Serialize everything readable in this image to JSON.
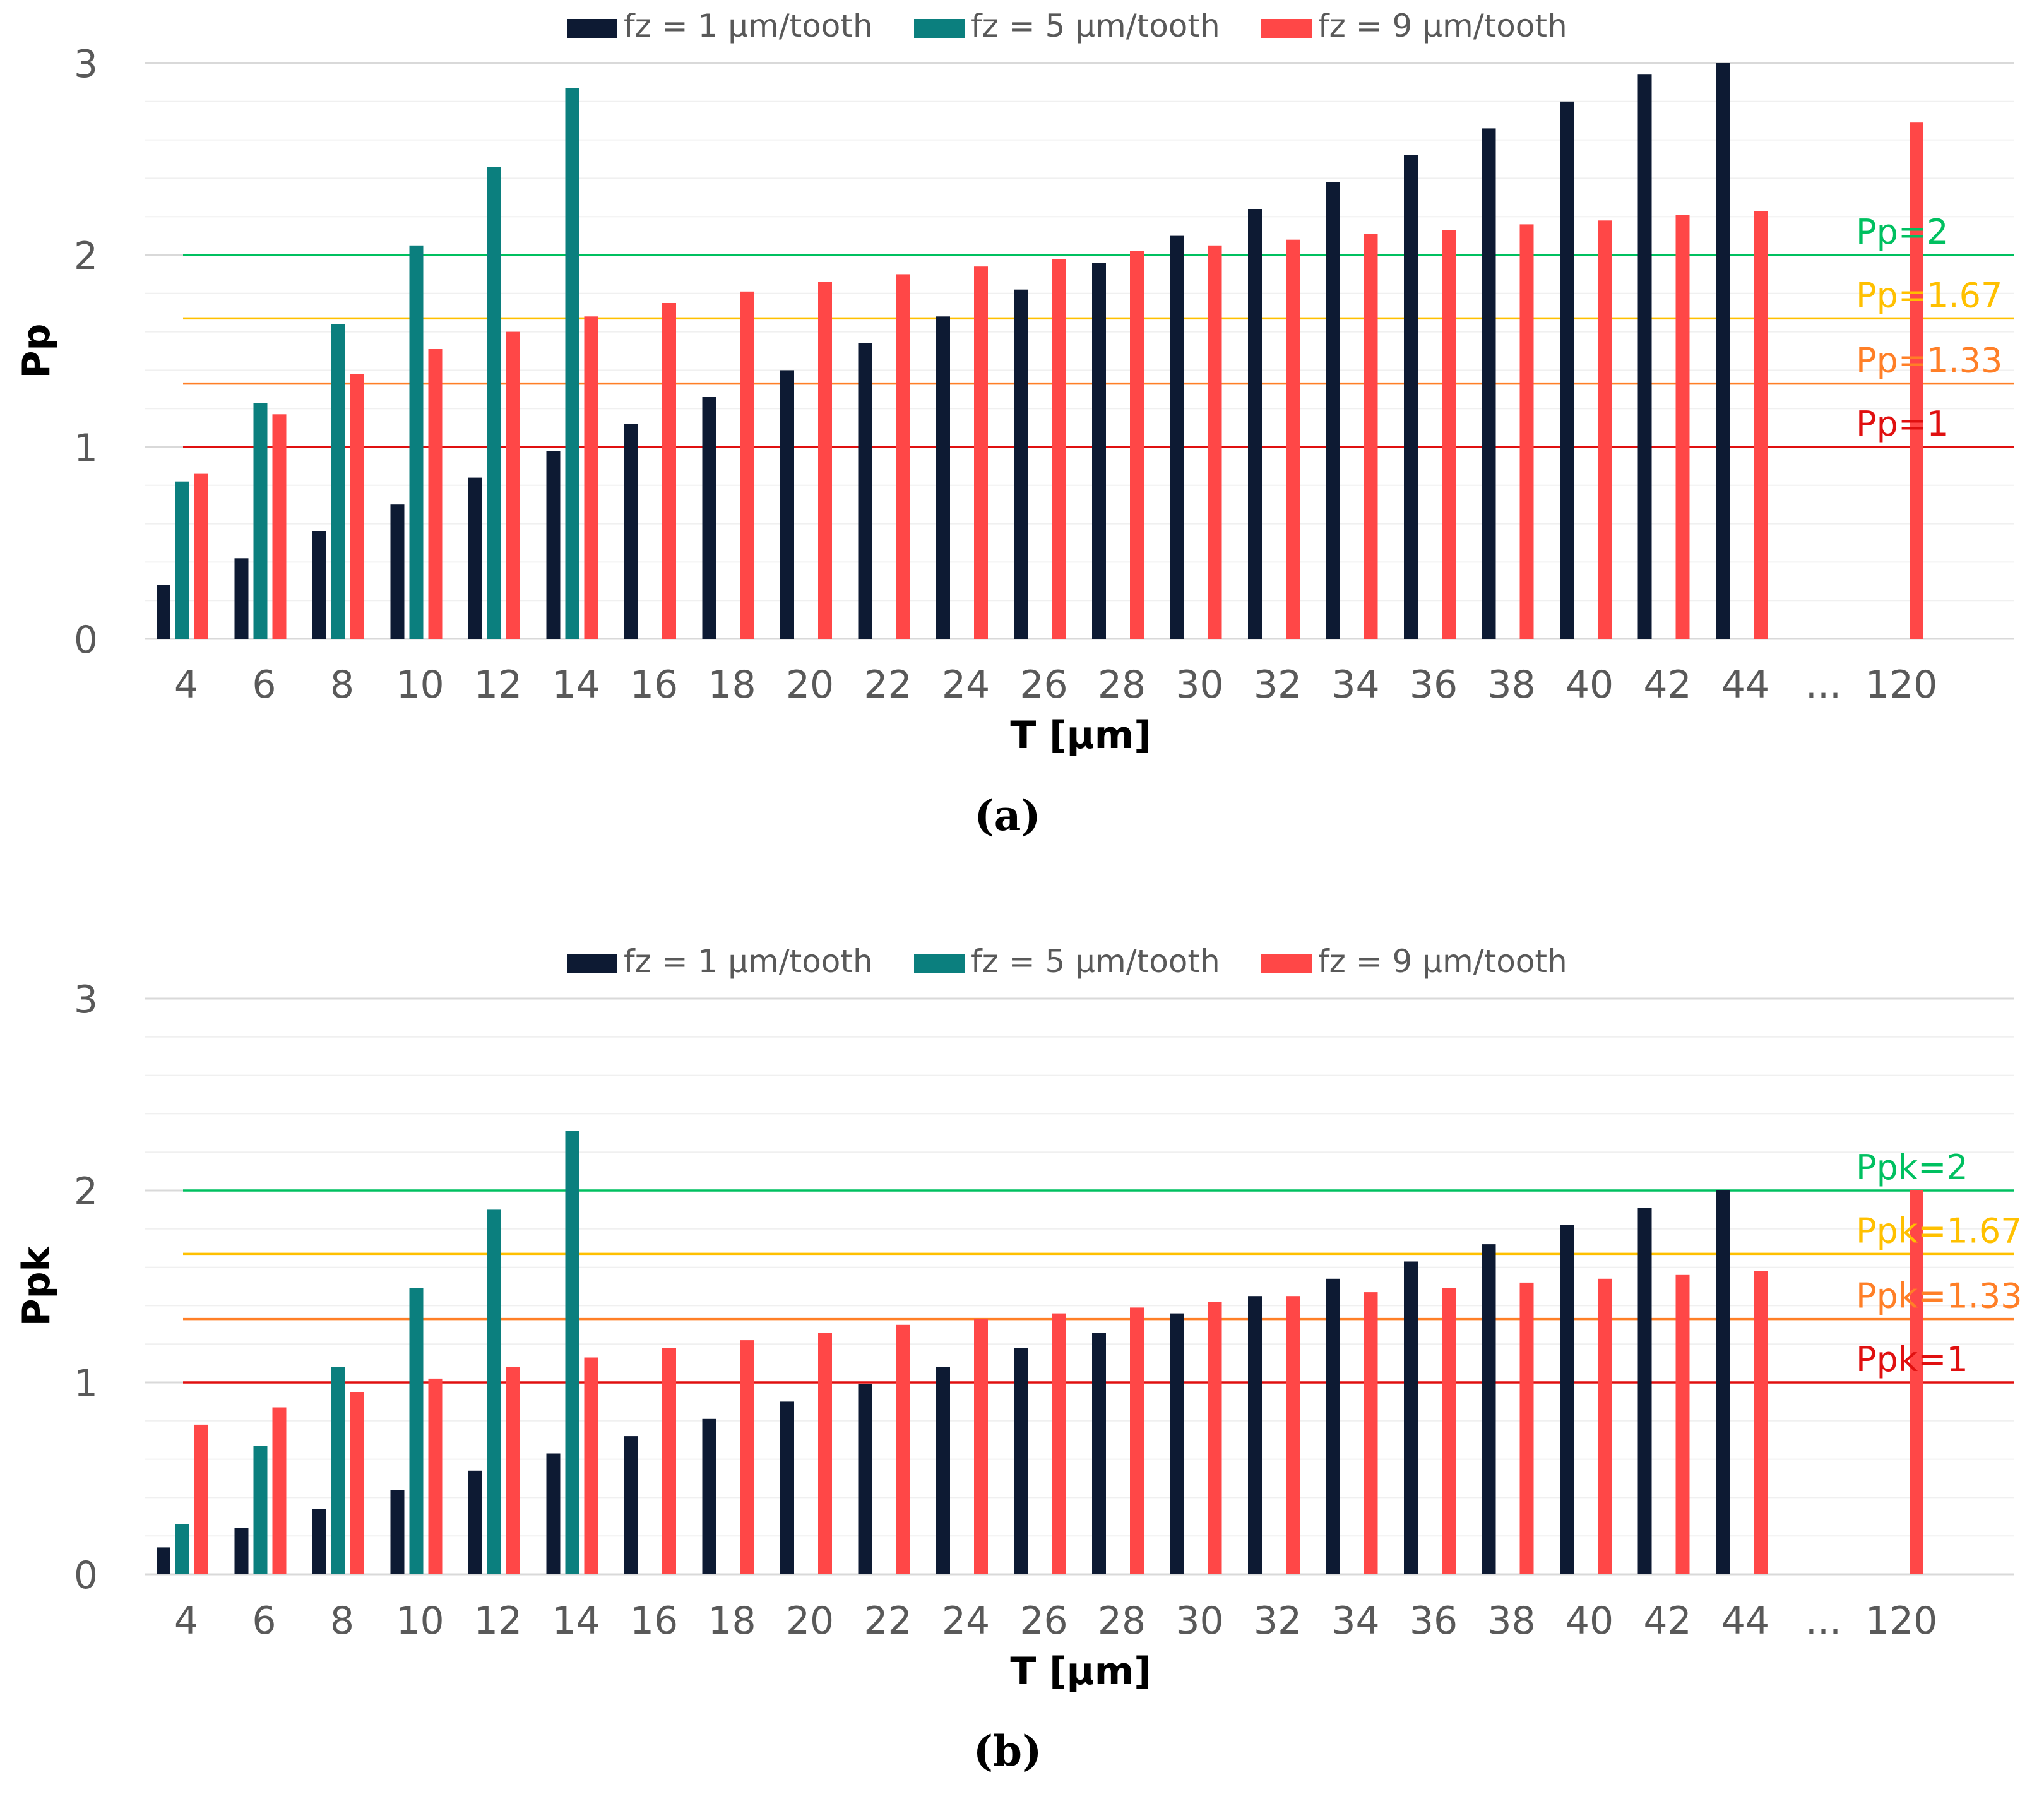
{
  "colors": {
    "fz1": "#0d1a33",
    "fz5": "#0b7f7e",
    "fz9": "#ff4747",
    "grid_major": "#d9d9d9",
    "grid_minor": "#f0f0f0",
    "text": "#595959",
    "axis_title": "#000000",
    "ref_2": "#00c060",
    "ref_167": "#ffc000",
    "ref_133": "#ff7f27",
    "ref_1": "#e01010"
  },
  "chart_data": [
    {
      "type": "bar",
      "panel_label": "(a)",
      "xlabel": "T [μm]",
      "ylabel": "Pp",
      "ylim": [
        0,
        3
      ],
      "yticks": [
        "0",
        "1",
        "2",
        "3"
      ],
      "categories": [
        "4",
        "6",
        "8",
        "10",
        "12",
        "14",
        "16",
        "18",
        "20",
        "22",
        "24",
        "26",
        "28",
        "30",
        "32",
        "34",
        "36",
        "38",
        "40",
        "42",
        "44",
        "...",
        "120"
      ],
      "legend": [
        "fz = 1 μm/tooth",
        "fz = 5 μm/tooth",
        "fz = 9 μm/tooth"
      ],
      "series": [
        {
          "name": "fz = 1 μm/tooth",
          "values": [
            0.28,
            0.42,
            0.56,
            0.7,
            0.84,
            0.98,
            1.12,
            1.26,
            1.4,
            1.54,
            1.68,
            1.82,
            1.96,
            2.1,
            2.24,
            2.38,
            2.52,
            2.66,
            2.8,
            2.94,
            3.0,
            null,
            null
          ]
        },
        {
          "name": "fz = 5 μm/tooth",
          "values": [
            0.82,
            1.23,
            1.64,
            2.05,
            2.46,
            2.87,
            null,
            null,
            null,
            null,
            null,
            null,
            null,
            null,
            null,
            null,
            null,
            null,
            null,
            null,
            null,
            null,
            null
          ]
        },
        {
          "name": "fz = 9 μm/tooth",
          "values": [
            0.86,
            1.17,
            1.38,
            1.51,
            1.6,
            1.68,
            1.75,
            1.81,
            1.86,
            1.9,
            1.94,
            1.98,
            2.02,
            2.05,
            2.08,
            2.11,
            2.13,
            2.16,
            2.18,
            2.21,
            2.23,
            null,
            2.69
          ]
        }
      ],
      "ref_lines": [
        {
          "value": 2,
          "label": "Pp=2"
        },
        {
          "value": 1.67,
          "label": "Pp=1.67"
        },
        {
          "value": 1.33,
          "label": "Pp=1.33"
        },
        {
          "value": 1,
          "label": "Pp=1"
        }
      ]
    },
    {
      "type": "bar",
      "panel_label": "(b)",
      "xlabel": "T [μm]",
      "ylabel": "Ppk",
      "ylim": [
        0,
        3
      ],
      "yticks": [
        "0",
        "1",
        "2",
        "3"
      ],
      "categories": [
        "4",
        "6",
        "8",
        "10",
        "12",
        "14",
        "16",
        "18",
        "20",
        "22",
        "24",
        "26",
        "28",
        "30",
        "32",
        "34",
        "36",
        "38",
        "40",
        "42",
        "44",
        "...",
        "120"
      ],
      "legend": [
        "fz = 1 μm/tooth",
        "fz = 5 μm/tooth",
        "fz = 9 μm/tooth"
      ],
      "series": [
        {
          "name": "fz = 1 μm/tooth",
          "values": [
            0.14,
            0.24,
            0.34,
            0.44,
            0.54,
            0.63,
            0.72,
            0.81,
            0.9,
            0.99,
            1.08,
            1.18,
            1.26,
            1.36,
            1.45,
            1.54,
            1.63,
            1.72,
            1.82,
            1.91,
            2.0,
            null,
            null
          ]
        },
        {
          "name": "fz = 5 μm/tooth",
          "values": [
            0.26,
            0.67,
            1.08,
            1.49,
            1.9,
            2.31,
            null,
            null,
            null,
            null,
            null,
            null,
            null,
            null,
            null,
            null,
            null,
            null,
            null,
            null,
            null,
            null,
            null
          ]
        },
        {
          "name": "fz = 9 μm/tooth",
          "values": [
            0.78,
            0.87,
            0.95,
            1.02,
            1.08,
            1.13,
            1.18,
            1.22,
            1.26,
            1.3,
            1.33,
            1.36,
            1.39,
            1.42,
            1.45,
            1.47,
            1.49,
            1.52,
            1.54,
            1.56,
            1.58,
            null,
            2.0
          ]
        }
      ],
      "ref_lines": [
        {
          "value": 2,
          "label": "Ppk=2"
        },
        {
          "value": 1.67,
          "label": "Ppk=1.67"
        },
        {
          "value": 1.33,
          "label": "Ppk=1.33"
        },
        {
          "value": 1,
          "label": "Ppk=1"
        }
      ]
    }
  ]
}
